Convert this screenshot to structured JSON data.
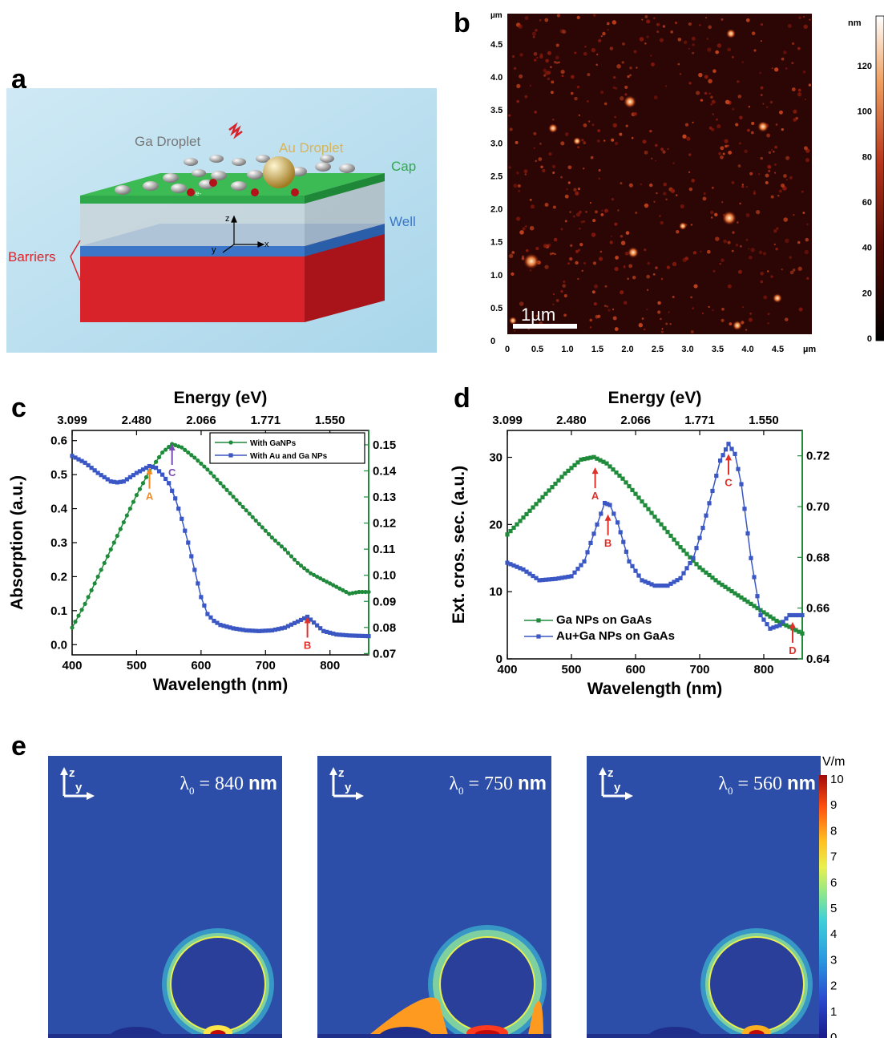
{
  "panels": {
    "a": "a",
    "b": "b",
    "c": "c",
    "d": "d",
    "e": "e"
  },
  "panel_a": {
    "labels": {
      "ga_droplet": "Ga Droplet",
      "au_droplet": "Au Droplet",
      "cap": "Cap",
      "well": "Well",
      "barriers": "Barriers",
      "electron": "e-",
      "axis_z": "z",
      "axis_y": "y",
      "axis_x": "x"
    },
    "colors": {
      "cap": "#2ea84a",
      "well": "#3b76c9",
      "barrier": "#d8232a",
      "background": "#b9dff0",
      "ga": "#9a9a9a",
      "au": "#d8b45a"
    }
  },
  "panel_b": {
    "unit_um": "µm",
    "unit_nm": "nm",
    "y_ticks": [
      "4.5",
      "4.0",
      "3.5",
      "3.0",
      "2.5",
      "2.0",
      "1.5",
      "1.0",
      "0.5",
      "0"
    ],
    "x_ticks": [
      "0",
      "0.5",
      "1.0",
      "1.5",
      "2.0",
      "2.5",
      "3.0",
      "3.5",
      "4.0",
      "4.5"
    ],
    "scale_bar": "1µm",
    "colorbar_ticks": [
      "120",
      "100",
      "80",
      "60",
      "40",
      "20",
      "0"
    ],
    "colors": {
      "background": "#2c0505",
      "bright": "#ffd9a0",
      "mid": "#c2411b"
    }
  },
  "chart_data": [
    {
      "type": "line",
      "panel": "c",
      "xlabel": "Wavelength (nm)",
      "ylabel": "Absorption (a.u.)",
      "top_label": "Energy (eV)",
      "xlim": [
        400,
        860
      ],
      "ylim": [
        -0.03,
        0.63
      ],
      "y2lim": [
        0.0695,
        0.1555
      ],
      "x_ticks": [
        "400",
        "500",
        "600",
        "700",
        "800"
      ],
      "y_ticks": [
        "0.0",
        "0.1",
        "0.2",
        "0.3",
        "0.4",
        "0.5",
        "0.6"
      ],
      "y2_ticks": [
        "0.07",
        "0.08",
        "0.09",
        "0.10",
        "0.11",
        "0.12",
        "0.13",
        "0.14",
        "0.15"
      ],
      "top_ticks": [
        "3.099",
        "2.480",
        "2.066",
        "1.771",
        "1.550"
      ],
      "series": [
        {
          "name": "With GaNPs",
          "color": "#1e8a3a",
          "marker": "circle",
          "axis": "left",
          "x": [
            400,
            420,
            440,
            460,
            480,
            500,
            520,
            540,
            555,
            570,
            590,
            610,
            630,
            650,
            670,
            690,
            710,
            730,
            750,
            770,
            790,
            810,
            830,
            845,
            860
          ],
          "y": [
            0.05,
            0.12,
            0.2,
            0.28,
            0.36,
            0.44,
            0.51,
            0.565,
            0.59,
            0.58,
            0.55,
            0.515,
            0.475,
            0.435,
            0.395,
            0.355,
            0.315,
            0.28,
            0.24,
            0.21,
            0.19,
            0.17,
            0.15,
            0.155,
            0.155
          ]
        },
        {
          "name": "With Au and Ga NPs",
          "color": "#3a57c4",
          "marker": "square",
          "axis": "left",
          "x": [
            400,
            420,
            440,
            460,
            470,
            480,
            500,
            520,
            530,
            540,
            550,
            560,
            570,
            580,
            590,
            600,
            610,
            620,
            630,
            650,
            670,
            690,
            710,
            730,
            750,
            765,
            775,
            790,
            810,
            830,
            860
          ],
          "y": [
            0.555,
            0.535,
            0.505,
            0.48,
            0.477,
            0.48,
            0.505,
            0.525,
            0.52,
            0.5,
            0.475,
            0.43,
            0.37,
            0.3,
            0.22,
            0.14,
            0.09,
            0.07,
            0.058,
            0.048,
            0.042,
            0.04,
            0.042,
            0.05,
            0.068,
            0.082,
            0.065,
            0.04,
            0.03,
            0.027,
            0.025
          ]
        }
      ],
      "annotations": [
        {
          "label": "A",
          "x": 520,
          "y": 0.52,
          "color": "#f0891e"
        },
        {
          "label": "C",
          "x": 555,
          "y": 0.59,
          "color": "#7a4bb5"
        },
        {
          "label": "B",
          "x": 765,
          "y": 0.082,
          "color": "#e0302a"
        }
      ]
    },
    {
      "type": "line",
      "panel": "d",
      "xlabel": "Wavelength (nm)",
      "ylabel": "Ext. cros. sec. (a.u.)",
      "top_label": "Energy (eV)",
      "xlim": [
        400,
        860
      ],
      "ylim": [
        0,
        34
      ],
      "y2lim": [
        0.64,
        0.73
      ],
      "x_ticks": [
        "400",
        "500",
        "600",
        "700",
        "800"
      ],
      "y_ticks": [
        "0",
        "10",
        "20",
        "30"
      ],
      "y2_ticks": [
        "0.64",
        "0.66",
        "0.68",
        "0.70",
        "0.72"
      ],
      "top_ticks": [
        "3.099",
        "2.480",
        "2.066",
        "1.771",
        "1.550"
      ],
      "series": [
        {
          "name": "Ga NPs on GaAs",
          "color": "#1e8a3a",
          "marker": "square",
          "axis": "right",
          "x": [
            400,
            430,
            460,
            490,
            515,
            535,
            555,
            580,
            610,
            640,
            670,
            700,
            730,
            760,
            790,
            820,
            845,
            860
          ],
          "y": [
            0.689,
            0.697,
            0.705,
            0.713,
            0.7185,
            0.7195,
            0.717,
            0.711,
            0.702,
            0.693,
            0.684,
            0.676,
            0.67,
            0.665,
            0.66,
            0.655,
            0.652,
            0.65
          ]
        },
        {
          "name": "Au+Ga NPs on GaAs",
          "color": "#3a57c4",
          "marker": "square",
          "axis": "left",
          "x": [
            400,
            425,
            450,
            475,
            500,
            520,
            540,
            552,
            560,
            572,
            590,
            610,
            630,
            650,
            670,
            690,
            705,
            720,
            732,
            745,
            755,
            765,
            780,
            795,
            810,
            825,
            840,
            860
          ],
          "y": [
            14.3,
            13.3,
            11.7,
            11.9,
            12.3,
            14.5,
            20.0,
            23.2,
            22.9,
            20.3,
            14.5,
            11.7,
            10.9,
            10.9,
            12.0,
            15.0,
            19.5,
            25.0,
            29.5,
            32.0,
            30.5,
            26.0,
            15.0,
            6.5,
            4.5,
            5.0,
            6.5,
            6.5
          ]
        }
      ],
      "annotations": [
        {
          "label": "A",
          "x": 537,
          "y": 28.5,
          "color": "#e0302a"
        },
        {
          "label": "B",
          "x": 557,
          "y": 21.5,
          "color": "#e0302a"
        },
        {
          "label": "C",
          "x": 745,
          "y": 30.5,
          "color": "#e0302a"
        },
        {
          "label": "D",
          "x": 845,
          "y": 5.5,
          "color": "#e0302a"
        }
      ]
    }
  ],
  "panel_e": {
    "fields": [
      {
        "lambda_prefix": "λ",
        "lambda_sub": "0",
        "lambda_eq": " = 840 ",
        "lambda_unit": "nm",
        "hot": "#ffe44a"
      },
      {
        "lambda_prefix": "λ",
        "lambda_sub": "0",
        "lambda_eq": " = 750 ",
        "lambda_unit": "nm",
        "hot": "#ff3a1e"
      },
      {
        "lambda_prefix": "λ",
        "lambda_sub": "0",
        "lambda_eq": " = 560 ",
        "lambda_unit": "nm",
        "hot": "#ffb020"
      }
    ],
    "axis_z": "z",
    "axis_y": "y",
    "colorbar_unit": "V/m",
    "colorbar_ticks": [
      "10",
      "9",
      "8",
      "7",
      "6",
      "5",
      "4",
      "3",
      "2",
      "1",
      "0"
    ],
    "colors": {
      "field_bg": "#2c4ea8",
      "sphere": "#2a3f9a",
      "substrate": "#20308a"
    }
  }
}
